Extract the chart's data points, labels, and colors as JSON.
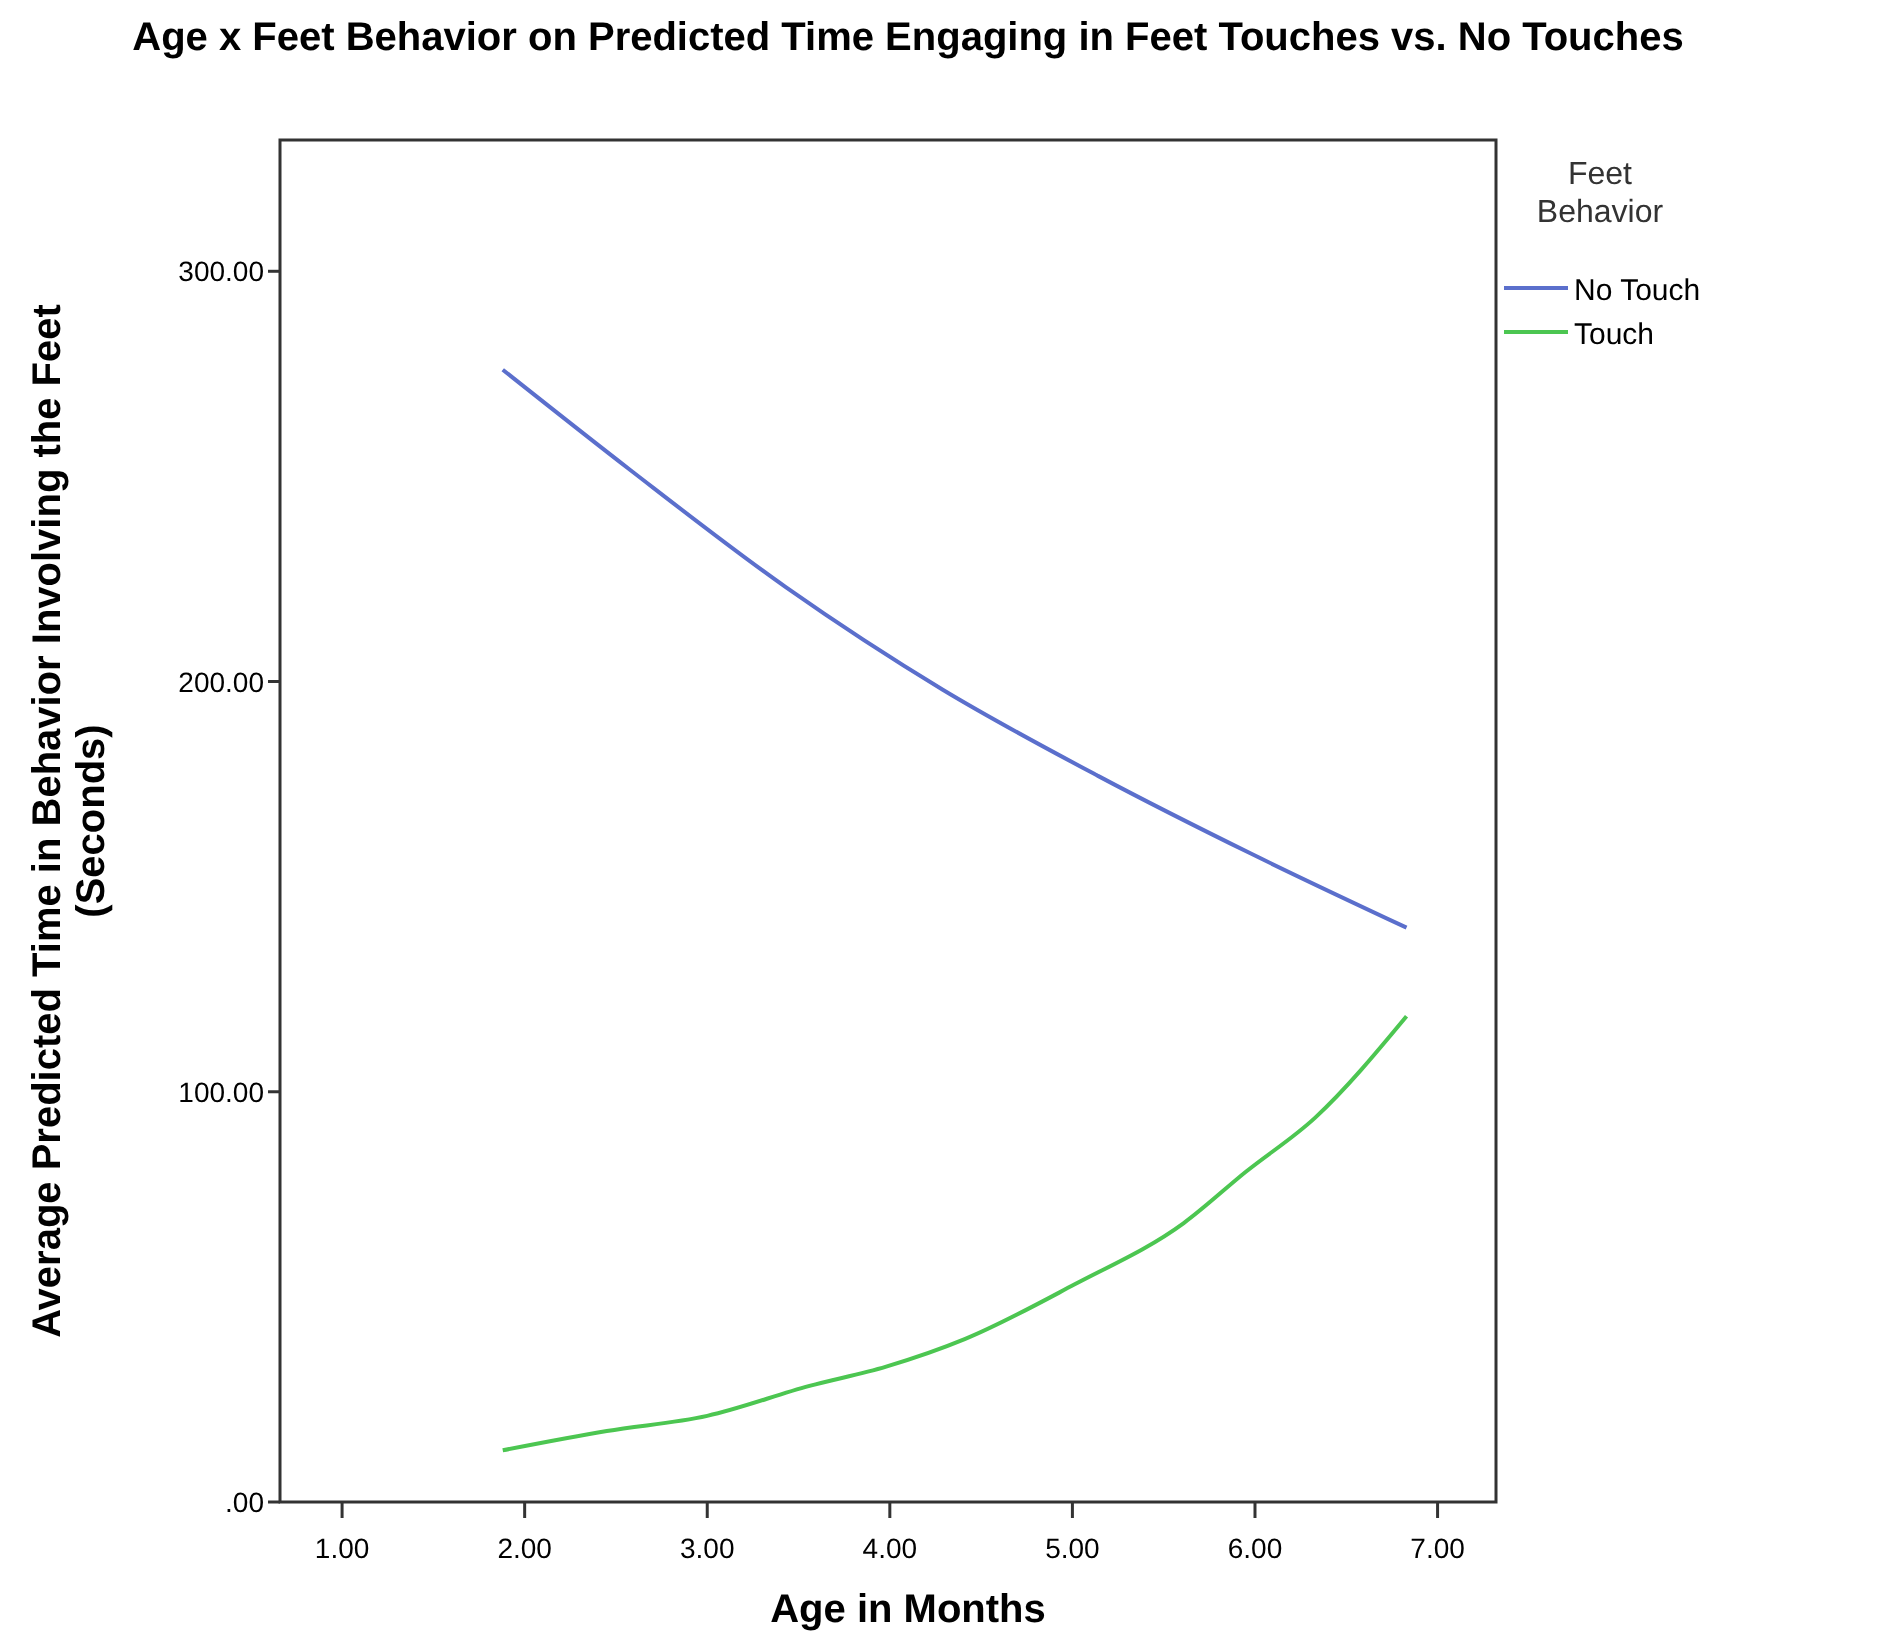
{
  "chart_data": {
    "type": "line",
    "title": "Age x Feet Behavior on Predicted Time Engaging in Feet Touches vs. No Touches",
    "xlabel": "Age in Months",
    "ylabel": "Average Predicted Time in Behavior Involving the Feet (Seconds)",
    "legend_title": "Feet Behavior",
    "legend": "top right",
    "grid": false,
    "marker": "none",
    "line_style": "solid",
    "xlim": [
      0.66,
      7.32
    ],
    "ylim": [
      0,
      332
    ],
    "xticks": [
      {
        "value": 1,
        "label": "1.00"
      },
      {
        "value": 2,
        "label": "2.00"
      },
      {
        "value": 3,
        "label": "3.00"
      },
      {
        "value": 4,
        "label": "4.00"
      },
      {
        "value": 5,
        "label": "5.00"
      },
      {
        "value": 6,
        "label": "6.00"
      },
      {
        "value": 7,
        "label": "7.00"
      }
    ],
    "yticks": [
      {
        "value": 0,
        "label": ".00"
      },
      {
        "value": 100,
        "label": "100.00"
      },
      {
        "value": 200,
        "label": "200.00"
      },
      {
        "value": 300,
        "label": "300.00"
      }
    ],
    "series": [
      {
        "name": "No Touch",
        "color": "#5b6fcc",
        "x": [
          1.88,
          2.58,
          3.43,
          4.29,
          5.14,
          5.98,
          6.83
        ],
        "values": [
          276,
          251.5,
          223,
          198,
          177,
          158,
          140
        ]
      },
      {
        "name": "Touch",
        "color": "#4cc651",
        "x": [
          1.88,
          2.45,
          3.0,
          3.56,
          3.98,
          4.41,
          5.01,
          5.61,
          5.95,
          6.33,
          6.83
        ],
        "values": [
          12.6,
          17.3,
          21,
          28.3,
          33,
          39.7,
          53,
          68,
          80.5,
          93.7,
          118.4
        ]
      }
    ]
  }
}
